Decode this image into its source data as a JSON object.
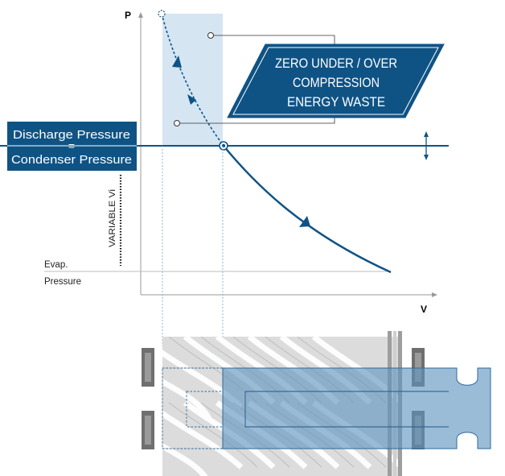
{
  "axes": {
    "y_label": "P",
    "x_label": "V"
  },
  "callout": {
    "line1": "ZERO UNDER / OVER",
    "line2": "COMPRESSION",
    "line3": "ENERGY WASTE"
  },
  "discharge_label": {
    "top": "Discharge Pressure",
    "equals": "=",
    "bottom": "Condenser Pressure"
  },
  "variable_vi_label": "VARIABLE Vi",
  "evap_label": {
    "line1": "Evap.",
    "line2": "Pressure"
  },
  "colors": {
    "dark_blue": "#0f5385",
    "light_blue_band": "#d5e5f2",
    "slide_valve_fill": "#6b9ec4",
    "rotor_gray": "#d6d6d6",
    "axis_gray": "#9a9a9a"
  },
  "icons": {
    "adjust": "double-arrow-vertical-icon"
  }
}
